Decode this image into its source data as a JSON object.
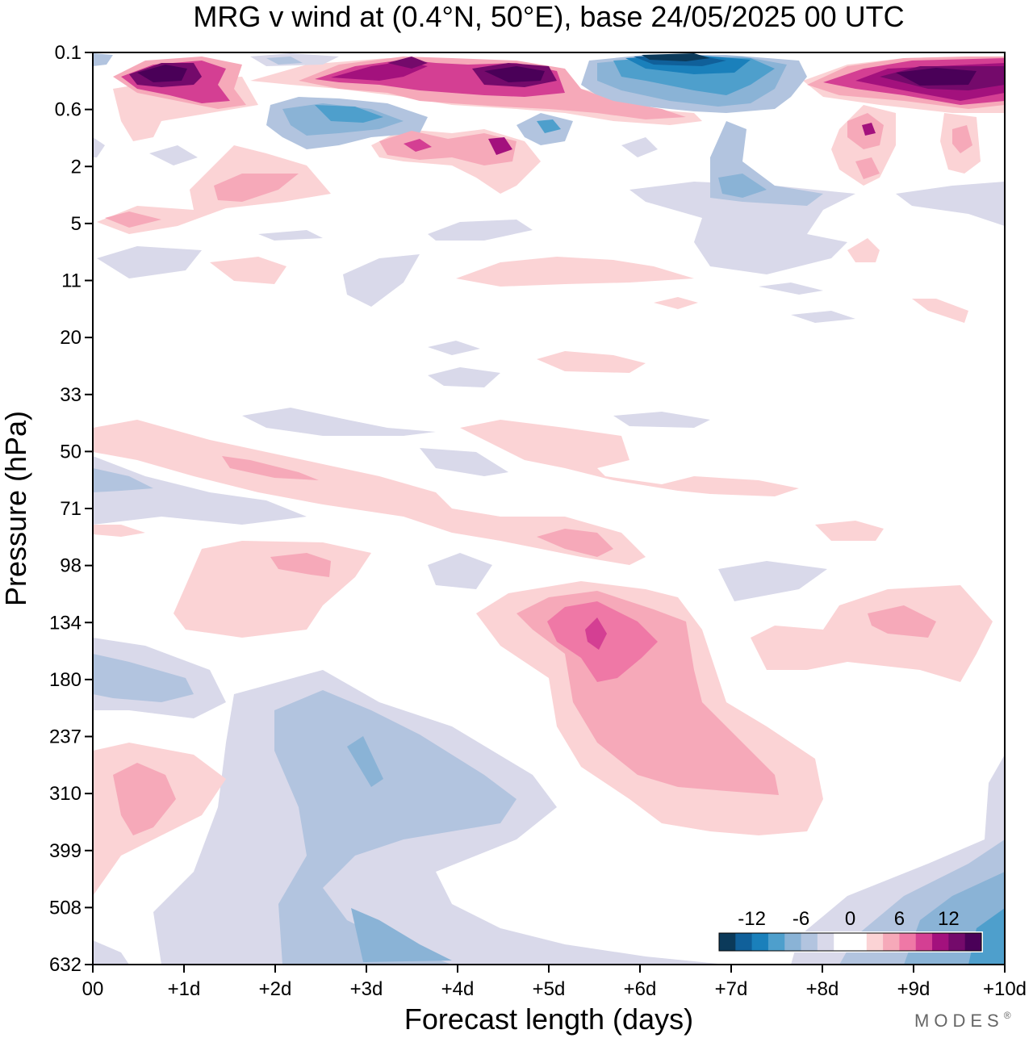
{
  "chart_data": {
    "type": "heatmap",
    "title": "MRG v wind at (0.4°N, 50°E),  base 24/05/2025  00 UTC",
    "xlabel": "Forecast length (days)",
    "ylabel": "Pressure (hPa)",
    "x_tick_labels": [
      "00",
      "+1d",
      "+2d",
      "+3d",
      "+4d",
      "+5d",
      "+6d",
      "+7d",
      "+8d",
      "+9d",
      "+10d"
    ],
    "x_range_days": [
      0,
      10
    ],
    "y_tick_labels": [
      "0.1",
      "0.6",
      "2",
      "5",
      "11",
      "20",
      "33",
      "50",
      "71",
      "98",
      "134",
      "180",
      "237",
      "310",
      "399",
      "508",
      "632"
    ],
    "y_axis_scale": "log (top = low pressure)",
    "colorbar": {
      "tick_labels": [
        "-12",
        "-6",
        "0",
        "6",
        "12"
      ],
      "colors": [
        "#0b3a5a",
        "#10609a",
        "#1a80bb",
        "#4e9fcc",
        "#8ab3d6",
        "#b2c4df",
        "#d9d9ea",
        "#ffffff",
        "#ffffff",
        "#fbd3d5",
        "#f6a9b9",
        "#ef78a6",
        "#d43f93",
        "#a3117d",
        "#740a6b",
        "#4a0058"
      ]
    },
    "features": [
      {
        "label": "positive max",
        "x_day": 5.5,
        "pressure_hPa": 140,
        "value": 9
      },
      {
        "label": "positive",
        "x_day": 0.5,
        "pressure_hPa": 310,
        "value": 6
      },
      {
        "label": "negative",
        "x_day": 3.0,
        "pressure_hPa": 260,
        "value": -6
      },
      {
        "label": "negative",
        "x_day": 3.3,
        "pressure_hPa": 632,
        "value": -6
      },
      {
        "label": "upper positive",
        "x_day": 0.7,
        "pressure_hPa": 0.3,
        "value": 14
      },
      {
        "label": "upper negative",
        "x_day": 6.5,
        "pressure_hPa": 0.15,
        "value": -14
      },
      {
        "label": "upper positive",
        "x_day": 9.0,
        "pressure_hPa": 0.3,
        "value": 14
      }
    ]
  },
  "credit": "MODES",
  "credit_mark": "®"
}
